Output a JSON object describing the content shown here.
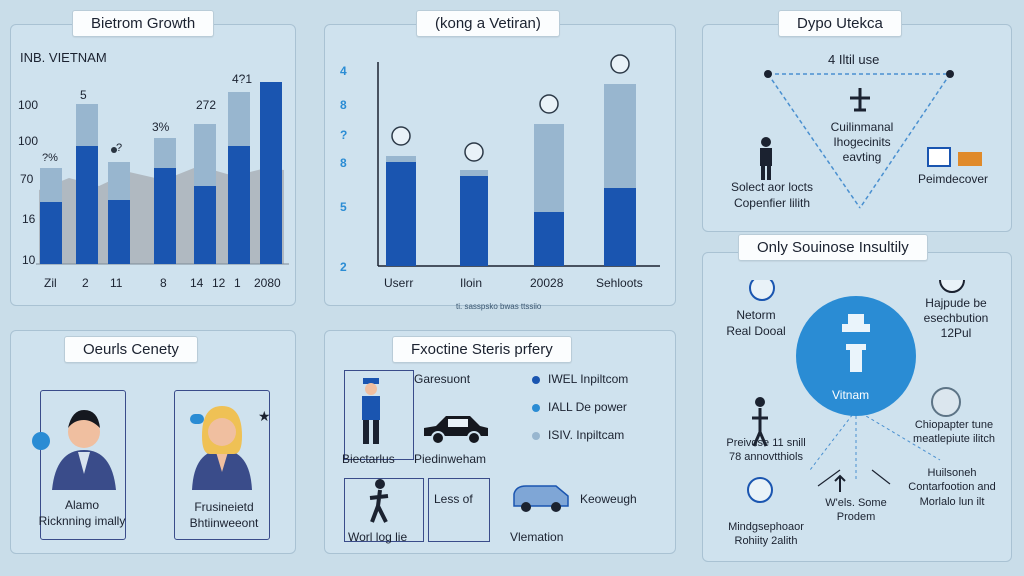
{
  "colors": {
    "background": "#c9dde9",
    "dark_blue": "#1a55b0",
    "light_blue": "#98b6cf",
    "accent_circle": "#2a8cd4",
    "grey_area": "#aab2b8"
  },
  "panel_growth": {
    "title": "Bietrom Growth",
    "subtitle": "INB. VIETNAM",
    "y_labels": [
      "100",
      "100",
      "70",
      "16",
      "10"
    ],
    "x_labels": [
      "Zil",
      "2",
      "11",
      "8",
      "14",
      "12",
      "1",
      "2080"
    ],
    "data_labels": [
      "5",
      "3%",
      "272",
      "4?1"
    ],
    "small_labels": [
      "?%",
      "?"
    ]
  },
  "panel_vetiran": {
    "title": "(kong a Vetiran)",
    "y_icons": [
      "4",
      "8",
      "?",
      "8",
      "5",
      "2"
    ],
    "x_labels": [
      "Userr",
      "Iloin",
      "20028",
      "Sehloots"
    ],
    "caption": "ti. sasspsko bwas ttssiio"
  },
  "panel_dypo": {
    "title": "Dypo Utekca",
    "top_label": "4 Iltil use",
    "center_text": "Cuilinmanal\nIhogecinits\neavting",
    "left_text": "Solect aor locts\nCopenfier lilith",
    "right_text": "Peimdecover"
  },
  "panel_only": {
    "title": "Only Souinose Insultily",
    "center_label": "Vitnam",
    "nodes": [
      "Netorm\nReal Dooal",
      "Hajpude be\nesechbution\n12Pul",
      "Chiopapter tune\nmeatlepiute ilitch",
      "Preivdse 11 snill\n78 annovtthiols",
      "Huilsoneh\nContarfootion and\nMorlalo lun ilt",
      "W'els. Some\nProdem",
      "Mindgsephoaor\nRohiity 2alith"
    ]
  },
  "panel_oeurls": {
    "title": "Oeurls Cenety",
    "persons": [
      "Alamo\nRicknning imally",
      "Frusineietd\nBhtiinweeont"
    ]
  },
  "panel_fxoctine": {
    "title": "Fxoctine Steris prfery",
    "items": [
      "Garesuont",
      "Biectarlus",
      "Piedinweham",
      "Less of",
      "Keoweugh",
      "Worl log lie",
      "Vlemation"
    ],
    "legend": [
      "IWEL Inpiltcom",
      "IALL De power",
      "ISIV. Inpiltcam"
    ]
  }
}
